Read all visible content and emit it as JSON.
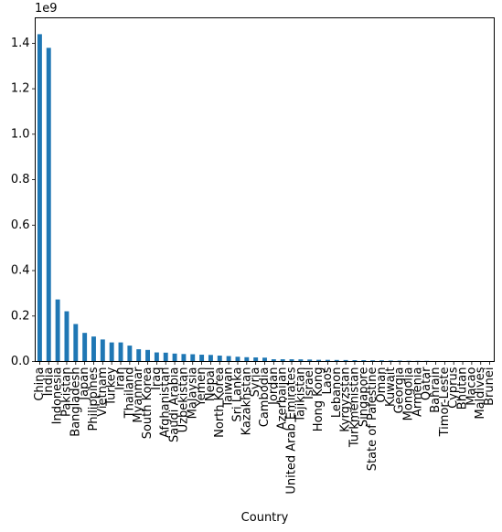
{
  "chart_data": {
    "type": "bar",
    "title": "",
    "xlabel": "Country",
    "ylabel": "",
    "y_offset_label": "1e9",
    "ylim": [
      0,
      1.512
    ],
    "yticks": [
      0.0,
      0.2,
      0.4,
      0.6,
      0.8,
      1.0,
      1.2,
      1.4
    ],
    "ytick_labels": [
      "0.0",
      "0.2",
      "0.4",
      "0.6",
      "0.8",
      "1.0",
      "1.2",
      "1.4"
    ],
    "grid": false,
    "bar_color": "#1f77b4",
    "categories": [
      "China",
      "India",
      "Indonesia",
      "Pakistan",
      "Bangladesh",
      "Japan",
      "Philippines",
      "Vietnam",
      "Turkey",
      "Iran",
      "Thailand",
      "Myanmar",
      "South Korea",
      "Iraq",
      "Afghanistan",
      "Saudi Arabia",
      "Uzbekistan",
      "Malaysia",
      "Yemen",
      "Nepal",
      "North Korea",
      "Taiwan",
      "Sri Lanka",
      "Kazakhstan",
      "Syria",
      "Cambodia",
      "Jordan",
      "Azerbaijan",
      "United Arab Emirates",
      "Tajikistan",
      "Israel",
      "Hong Kong",
      "Laos",
      "Lebanon",
      "Kyrgyzstan",
      "Turkmenistan",
      "Singapore",
      "State of Palestine",
      "Oman",
      "Kuwait",
      "Georgia",
      "Mongolia",
      "Armenia",
      "Qatar",
      "Bahrain",
      "Timor-Leste",
      "Cyprus",
      "Bhutan",
      "Macao",
      "Maldives",
      "Brunei"
    ],
    "values": [
      1440000000,
      1380000000,
      273000000,
      221000000,
      165000000,
      126000000,
      110000000,
      97000000,
      84000000,
      84000000,
      70000000,
      54000000,
      51000000,
      40000000,
      39000000,
      35000000,
      33000000,
      32000000,
      30000000,
      29000000,
      26000000,
      24000000,
      21000000,
      19000000,
      18000000,
      17000000,
      10000000,
      10000000,
      9900000,
      9500000,
      8700000,
      7500000,
      7300000,
      6800000,
      6500000,
      6000000,
      5900000,
      5100000,
      5100000,
      4300000,
      4000000,
      3300000,
      3000000,
      2900000,
      1700000,
      1300000,
      1200000,
      770000,
      650000,
      540000,
      440000
    ]
  }
}
